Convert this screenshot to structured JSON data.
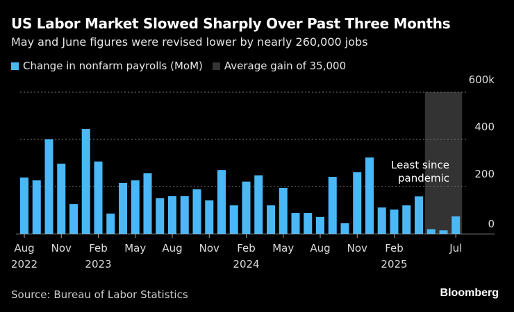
{
  "chart_data": {
    "type": "bar",
    "title": "US Labor Market Slowed Sharply Over Past Three Months",
    "subtitle": "May and June figures were revised lower by nearly 260,000 jobs",
    "legend": [
      {
        "label": "Change in nonfarm payrolls (MoM)",
        "color": "#4ab8f7"
      },
      {
        "label": "Average gain of 35,000",
        "color": "#333333"
      }
    ],
    "legend_placement": "top-left",
    "categories": [
      "Aug 2022",
      "Sep 2022",
      "Oct 2022",
      "Nov 2022",
      "Dec 2022",
      "Jan 2023",
      "Feb 2023",
      "Mar 2023",
      "Apr 2023",
      "May 2023",
      "Jun 2023",
      "Jul 2023",
      "Aug 2023",
      "Sep 2023",
      "Oct 2023",
      "Nov 2023",
      "Dec 2023",
      "Jan 2024",
      "Feb 2024",
      "Mar 2024",
      "Apr 2024",
      "May 2024",
      "Jun 2024",
      "Jul 2024",
      "Aug 2024",
      "Sep 2024",
      "Oct 2024",
      "Nov 2024",
      "Dec 2024",
      "Jan 2025",
      "Feb 2025",
      "Mar 2025",
      "Apr 2025",
      "May 2025",
      "Jun 2025",
      "Jul 2025"
    ],
    "values": [
      238,
      226,
      400,
      297,
      126,
      444,
      306,
      85,
      215,
      226,
      256,
      150,
      159,
      159,
      188,
      141,
      270,
      120,
      221,
      247,
      120,
      194,
      88,
      88,
      71,
      241,
      44,
      261,
      323,
      111,
      102,
      120,
      158,
      19,
      14,
      73
    ],
    "highlight_range": [
      "May 2025",
      "Jul 2025"
    ],
    "annotation": [
      "Least since",
      "pandemic"
    ],
    "x_ticks": [
      {
        "label": "Aug",
        "year": "2022",
        "index": 0
      },
      {
        "label": "Nov",
        "year": "",
        "index": 3
      },
      {
        "label": "Feb",
        "year": "2023",
        "index": 6
      },
      {
        "label": "May",
        "year": "",
        "index": 9
      },
      {
        "label": "Aug",
        "year": "",
        "index": 12
      },
      {
        "label": "Nov",
        "year": "",
        "index": 15
      },
      {
        "label": "Feb",
        "year": "2024",
        "index": 18
      },
      {
        "label": "May",
        "year": "",
        "index": 21
      },
      {
        "label": "Aug",
        "year": "",
        "index": 24
      },
      {
        "label": "Nov",
        "year": "",
        "index": 27
      },
      {
        "label": "Feb",
        "year": "2025",
        "index": 30
      },
      {
        "label": "Jul",
        "year": "",
        "index": 35
      }
    ],
    "y_ticks": [
      {
        "value": 0,
        "label": "0"
      },
      {
        "value": 200,
        "label": "200"
      },
      {
        "value": 400,
        "label": "400"
      },
      {
        "value": 600,
        "label": "600k"
      }
    ],
    "ylim": [
      0,
      600
    ],
    "grid": true,
    "bar_color": "#4ab8f7",
    "shade_color": "#333333"
  },
  "source": "Source: Bureau of Labor Statistics",
  "brand": "Bloomberg"
}
